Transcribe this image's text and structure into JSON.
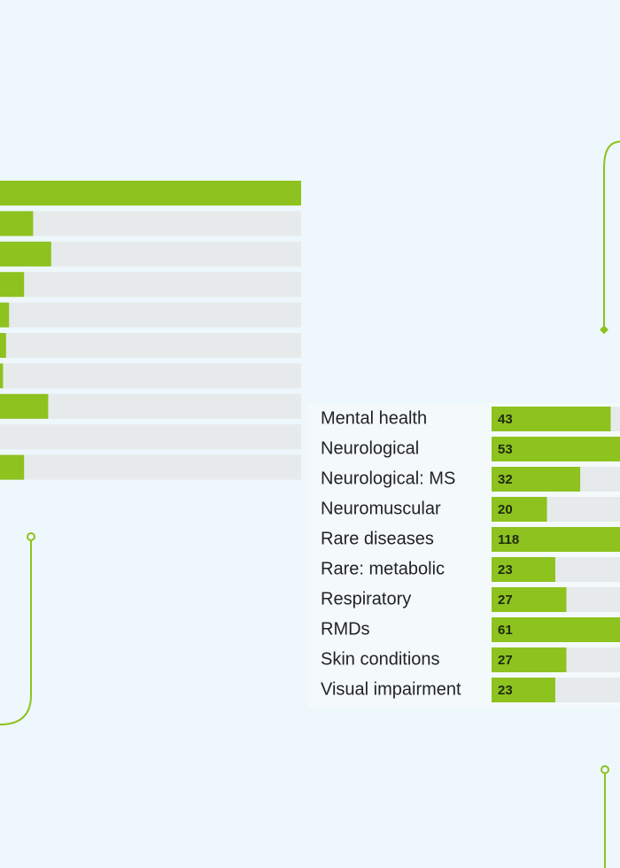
{
  "chart_data": [
    {
      "type": "bar",
      "orientation": "horizontal",
      "color": "#8dc21f",
      "track_color": "#e6eaea",
      "categories": [
        null,
        null,
        null,
        null,
        null,
        null,
        null,
        null,
        null,
        null
      ],
      "values": [
        100,
        11,
        17,
        8,
        3,
        2,
        1,
        16,
        0,
        8
      ],
      "xlim": [
        0,
        100
      ]
    },
    {
      "type": "bar",
      "orientation": "horizontal",
      "color": "#8dc21f",
      "track_color": "#e6eaea",
      "categories": [
        "Mental health",
        "Neurological",
        "Neurological: MS",
        "Neuromuscular",
        "Rare diseases",
        "Rare: metabolic",
        "Respiratory",
        "RMDs",
        "Skin conditions",
        "Visual impairment"
      ],
      "values": [
        43,
        53,
        32,
        20,
        118,
        23,
        27,
        61,
        27,
        23
      ],
      "xlim": [
        0,
        118
      ]
    }
  ]
}
